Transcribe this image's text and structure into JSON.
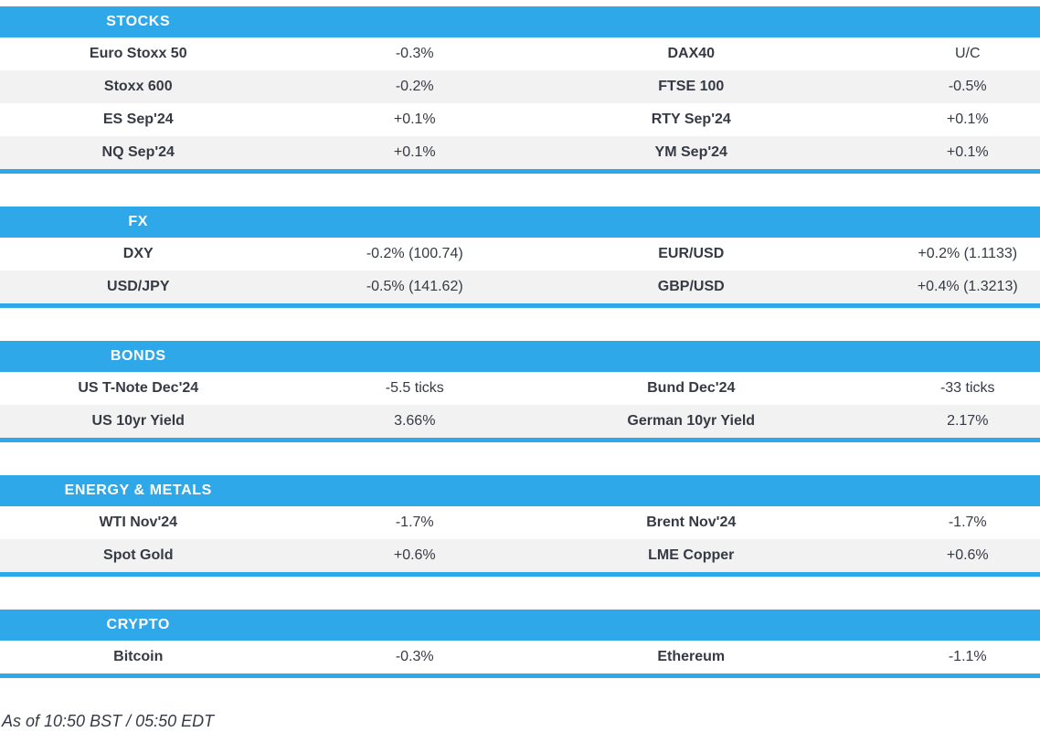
{
  "colors": {
    "accent_blue": "#2FA8EA",
    "row_stripe": "#F2F2F2",
    "text": "#363A44",
    "header_text": "#FFFFFF"
  },
  "table": {
    "sections": [
      {
        "title": "STOCKS",
        "rows": [
          [
            "Euro Stoxx 50",
            "-0.3%",
            "DAX40",
            "U/C"
          ],
          [
            "Stoxx 600",
            "-0.2%",
            "FTSE 100",
            "-0.5%"
          ],
          [
            "ES Sep'24",
            "+0.1%",
            "RTY Sep'24",
            "+0.1%"
          ],
          [
            "NQ Sep'24",
            "+0.1%",
            "YM Sep'24",
            "+0.1%"
          ]
        ]
      },
      {
        "title": "FX",
        "rows": [
          [
            "DXY",
            "-0.2% (100.74)",
            "EUR/USD",
            "+0.2% (1.1133)"
          ],
          [
            "USD/JPY",
            "-0.5% (141.62)",
            "GBP/USD",
            "+0.4% (1.3213)"
          ]
        ]
      },
      {
        "title": "BONDS",
        "rows": [
          [
            "US T-Note Dec'24",
            "-5.5 ticks",
            "Bund Dec'24",
            "-33 ticks"
          ],
          [
            "US 10yr Yield",
            "3.66%",
            "German 10yr Yield",
            "2.17%"
          ]
        ]
      },
      {
        "title": "ENERGY & METALS",
        "rows": [
          [
            "WTI Nov'24",
            "-1.7%",
            "Brent Nov'24",
            "-1.7%"
          ],
          [
            "Spot Gold",
            "+0.6%",
            "LME Copper",
            "+0.6%"
          ]
        ]
      },
      {
        "title": "CRYPTO",
        "rows": [
          [
            "Bitcoin",
            "-0.3%",
            "Ethereum",
            "-1.1%"
          ]
        ]
      }
    ]
  },
  "footer": {
    "as_of": "As of 10:50 BST / 05:50 EDT"
  }
}
